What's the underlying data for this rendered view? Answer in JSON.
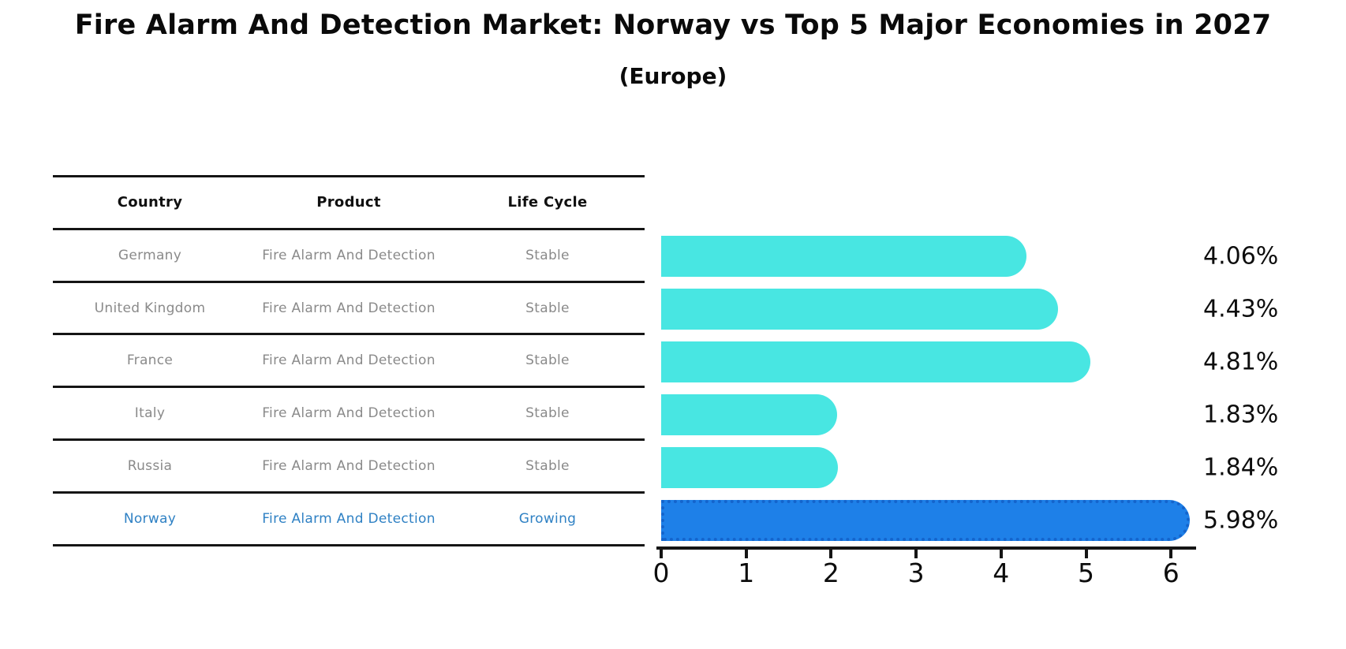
{
  "title": "Fire Alarm And Detection Market: Norway vs Top 5 Major Economies in 2027",
  "subtitle": "(Europe)",
  "table": {
    "headers": [
      "Country",
      "Product",
      "Life Cycle"
    ],
    "rows": [
      {
        "country": "Germany",
        "product": "Fire Alarm And Detection",
        "life_cycle": "Stable",
        "highlight": false
      },
      {
        "country": "United Kingdom",
        "product": "Fire Alarm And Detection",
        "life_cycle": "Stable",
        "highlight": false
      },
      {
        "country": "France",
        "product": "Fire Alarm And Detection",
        "life_cycle": "Stable",
        "highlight": false
      },
      {
        "country": "Italy",
        "product": "Fire Alarm And Detection",
        "life_cycle": "Stable",
        "highlight": false
      },
      {
        "country": "Russia",
        "product": "Fire Alarm And Detection",
        "life_cycle": "Stable",
        "highlight": false
      },
      {
        "country": "Norway",
        "product": "Fire Alarm And Detection",
        "life_cycle": "Growing",
        "highlight": true
      }
    ]
  },
  "chart_data": {
    "type": "bar",
    "orientation": "horizontal",
    "title": "Fire Alarm And Detection Market: Norway vs Top 5 Major Economies in 2027 (Europe)",
    "categories": [
      "Germany",
      "United Kingdom",
      "France",
      "Italy",
      "Russia",
      "Norway"
    ],
    "values": [
      4.06,
      4.43,
      4.81,
      1.83,
      1.84,
      5.98
    ],
    "value_labels": [
      "4.06%",
      "4.43%",
      "4.81%",
      "1.83%",
      "1.84%",
      "5.98%"
    ],
    "x_ticks": [
      "0",
      "1",
      "2",
      "3",
      "4",
      "5",
      "6"
    ],
    "xlim": [
      0,
      6.35
    ],
    "unit": "percent",
    "highlight_index": 5,
    "grid": false,
    "legend": "none"
  },
  "colors": {
    "bar": "#48E6E2",
    "highlight_bar": "#1E80E8",
    "highlight_bar_border": "#1464CC",
    "highlight_text": "#2F81C4",
    "cell_text": "#8A8A8A",
    "header_text": "#101010",
    "axis": "#151515",
    "title_text": "#0A0A0A"
  }
}
